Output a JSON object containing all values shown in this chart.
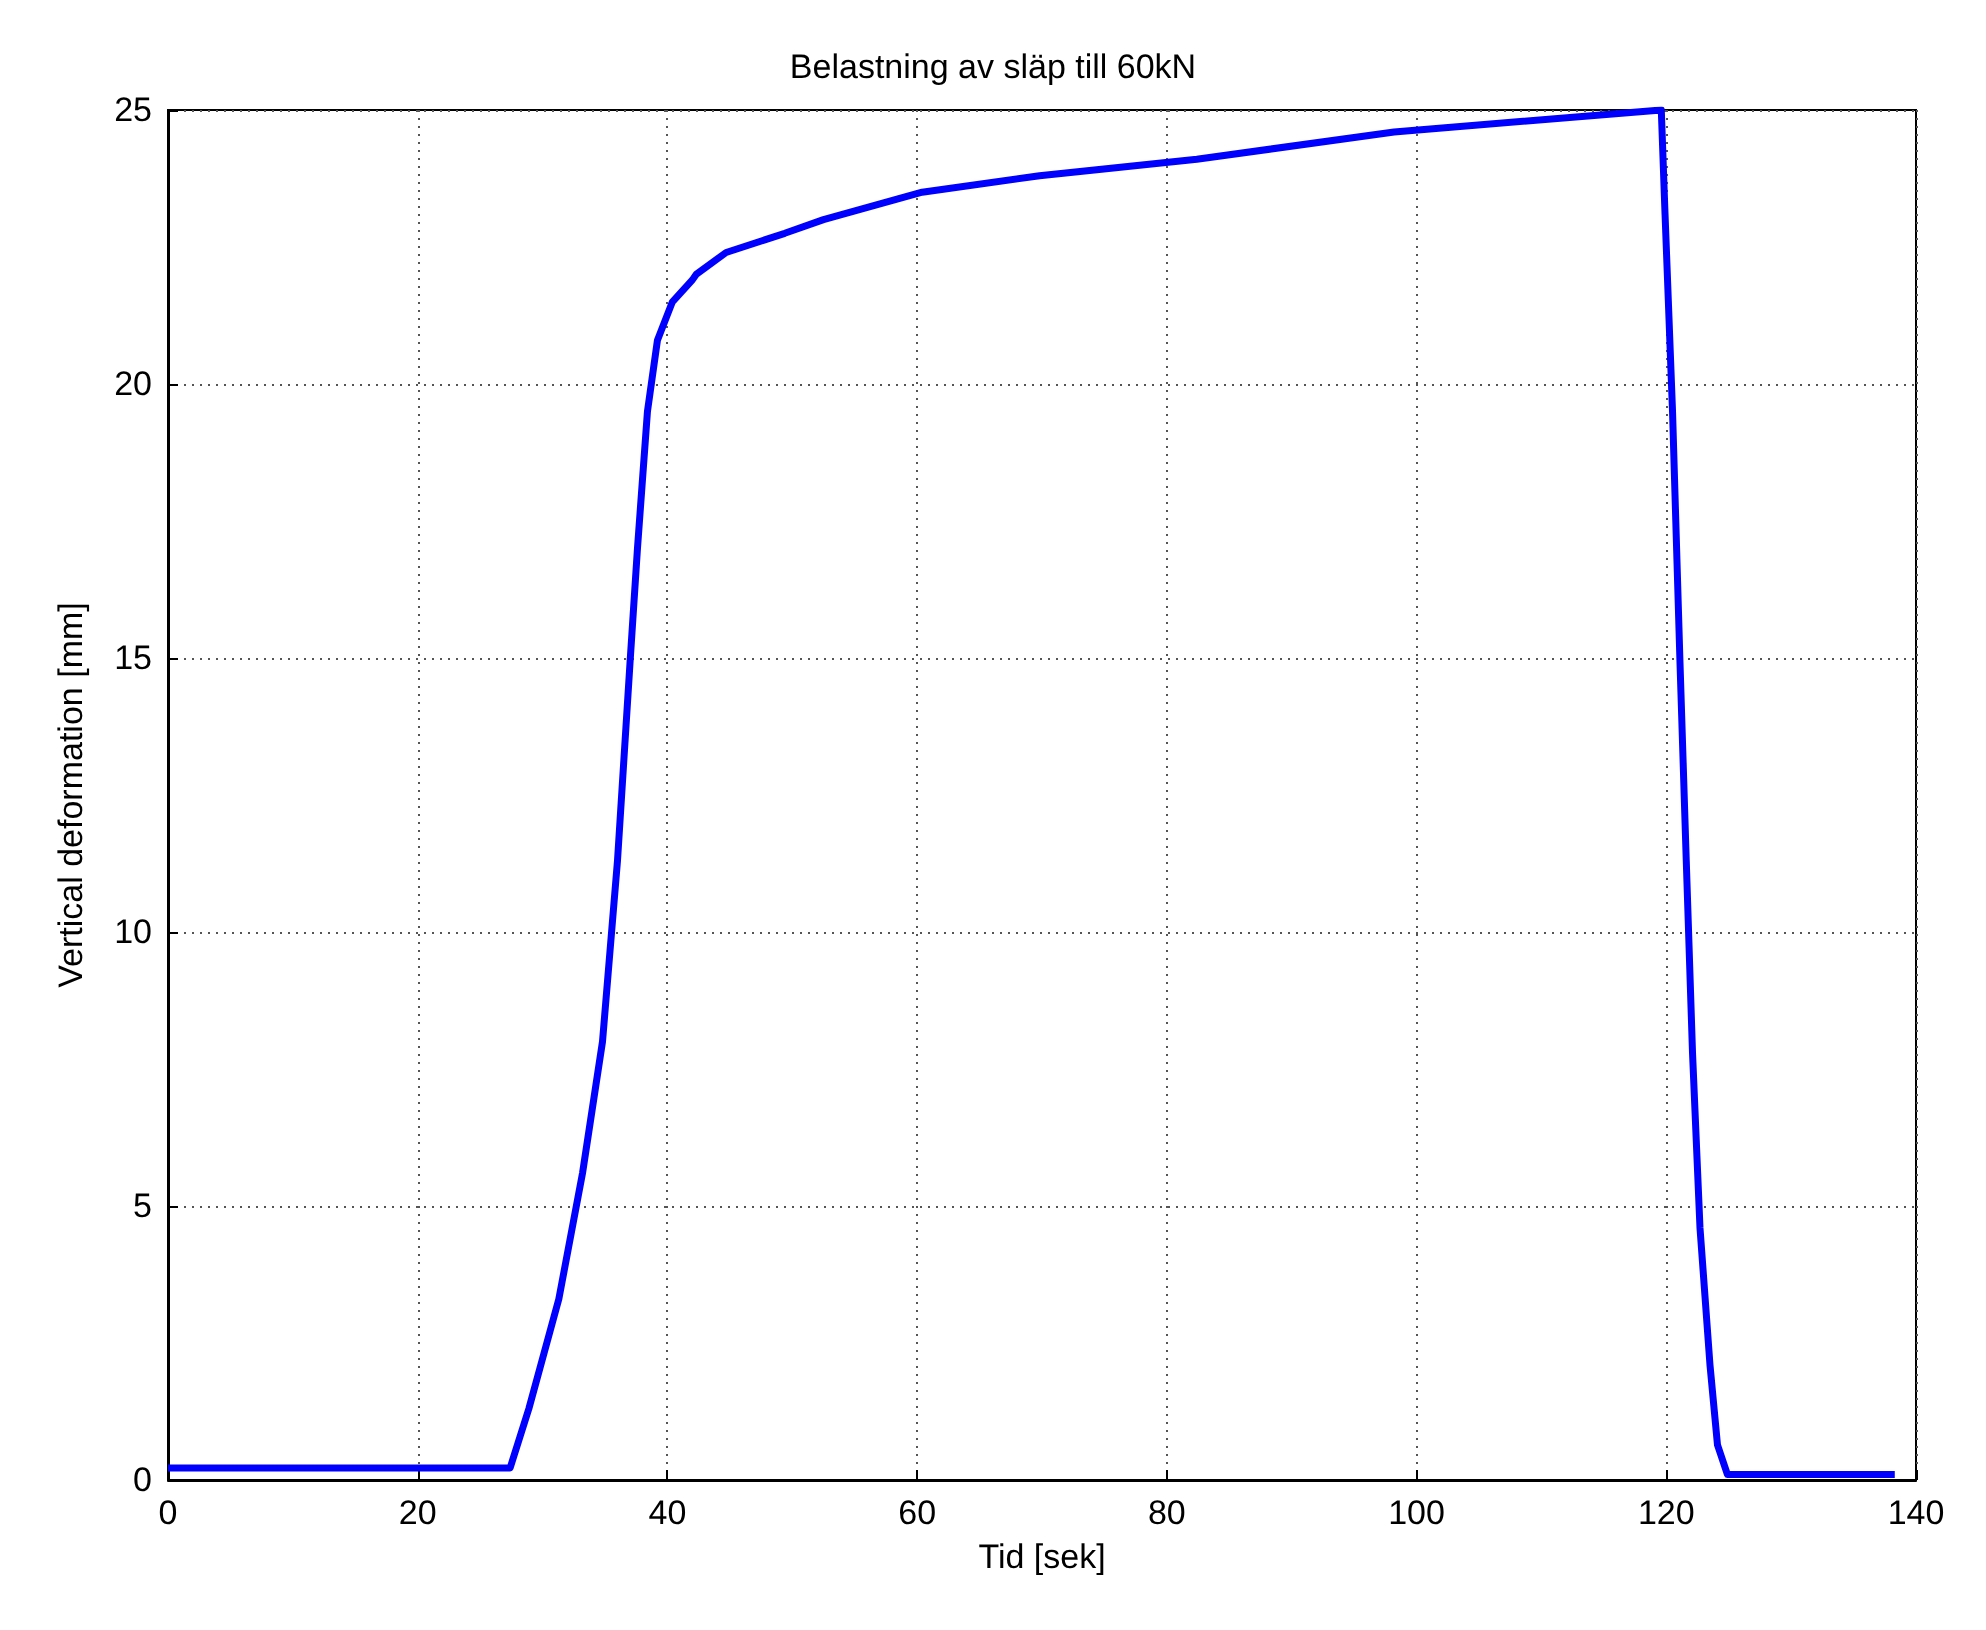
{
  "chart_data": {
    "type": "line",
    "title": "Belastning av släp till 60kN",
    "xlabel": "Tid [sek]",
    "ylabel": "Vertical deformation [mm]",
    "x": [
      0,
      27.4,
      28.9,
      31.3,
      33.2,
      34.8,
      36.0,
      37.0,
      37.6,
      38.4,
      39.2,
      40.4,
      42.0,
      42.3,
      44.7,
      49.4,
      52.5,
      60.4,
      69.8,
      82.4,
      98.2,
      119.6,
      119.9,
      120.5,
      121.1,
      121.6,
      122.1,
      122.7,
      123.5,
      124.1,
      124.9,
      138.3
    ],
    "series": [
      {
        "color": "#0000ff",
        "values": [
          0.22,
          0.22,
          1.3,
          3.3,
          5.6,
          8.0,
          11.3,
          14.9,
          17.0,
          19.5,
          20.8,
          21.5,
          21.9,
          22.0,
          22.4,
          22.75,
          23.0,
          23.5,
          23.8,
          24.1,
          24.6,
          25.0,
          23.1,
          19.5,
          14.9,
          11.3,
          7.8,
          4.6,
          2.1,
          0.64,
          0.1,
          0.1
        ]
      }
    ],
    "xlim": [
      0,
      140
    ],
    "xticks": [
      0,
      20,
      40,
      60,
      80,
      100,
      120,
      140
    ],
    "ylim": [
      0,
      25
    ],
    "yticks": [
      0,
      5,
      10,
      15,
      20,
      25
    ],
    "grid": true,
    "line_style": "solid",
    "marker": "none"
  }
}
